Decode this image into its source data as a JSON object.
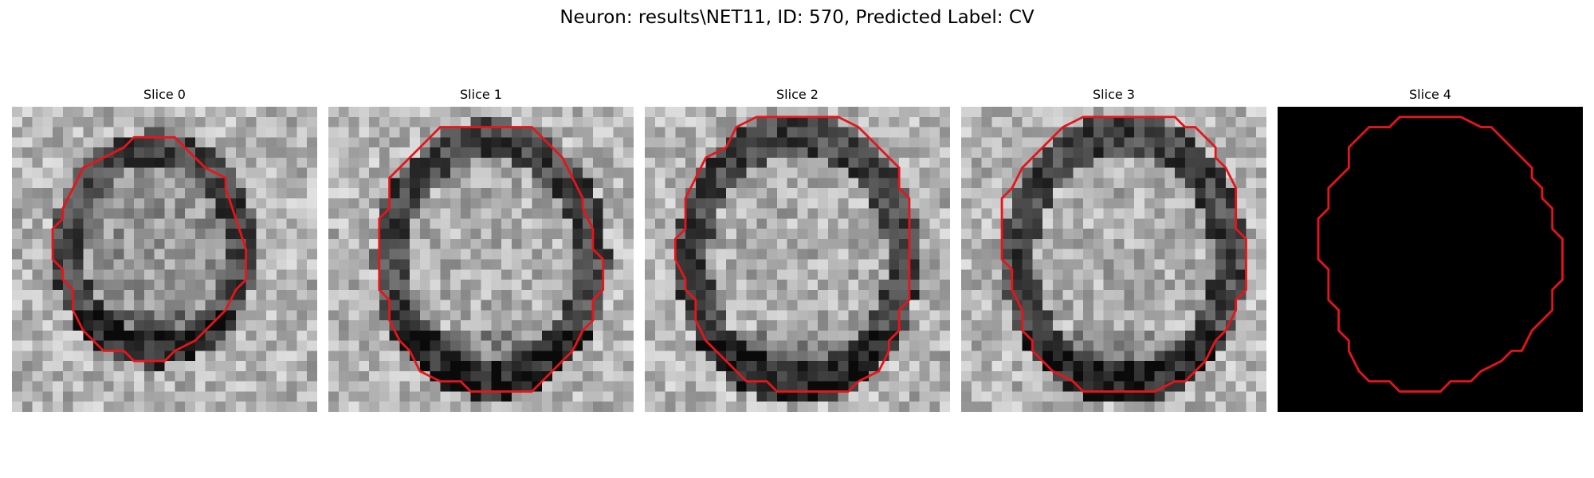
{
  "figure": {
    "title": "Neuron: results\\NET11, ID: 570, Predicted Label: CV"
  },
  "panels": [
    {
      "title": "Slice 0",
      "image_kind": "grayscale-em-patch",
      "has_contour": true
    },
    {
      "title": "Slice 1",
      "image_kind": "grayscale-em-patch",
      "has_contour": true
    },
    {
      "title": "Slice 2",
      "image_kind": "grayscale-em-patch",
      "has_contour": true
    },
    {
      "title": "Slice 3",
      "image_kind": "grayscale-em-patch",
      "has_contour": true
    },
    {
      "title": "Slice 4",
      "image_kind": "black-mask",
      "has_contour": true
    }
  ],
  "colors": {
    "contour": "#e8141a",
    "mask_background": "#000000",
    "page_background": "#ffffff"
  }
}
